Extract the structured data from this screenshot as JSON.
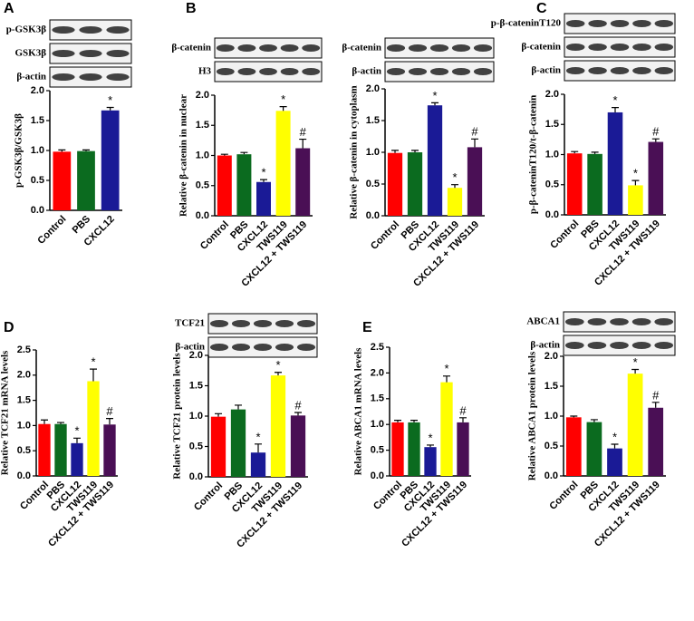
{
  "chart_data": [
    {
      "type": "bar",
      "panel": "A",
      "blots": [
        "p-GSK3β",
        "GSK3β",
        "β-actin"
      ],
      "y_label": "p-GSK3β/GSK3β",
      "categories": [
        "Control",
        "PBS",
        "CXCL12"
      ],
      "values": [
        0.98,
        0.99,
        1.67
      ],
      "errors": [
        0.03,
        0.02,
        0.05
      ],
      "annotations": [
        null,
        null,
        "*"
      ],
      "colors": [
        "#ff0000",
        "#0b6b1f",
        "#1a1a96"
      ],
      "ylim": [
        0,
        2
      ],
      "yticks": [
        {
          "value": 0,
          "label": "0.0"
        },
        0.5,
        {
          "value": 1,
          "label": "1.0"
        },
        1.5,
        {
          "value": 2,
          "label": "2.0"
        }
      ]
    },
    {
      "type": "bar",
      "panel": "B",
      "blots": [
        "β-catenin",
        "H3"
      ],
      "y_label": "Relative β-catenin in nuclear",
      "categories": [
        "Control",
        "PBS",
        "CXCL12",
        "TWS119",
        "CXCL12 + TWS119"
      ],
      "values": [
        1.0,
        1.02,
        0.56,
        1.74,
        1.12
      ],
      "errors": [
        0.02,
        0.03,
        0.04,
        0.07,
        0.15
      ],
      "annotations": [
        null,
        null,
        "*",
        "*",
        "#"
      ],
      "colors": [
        "#ff0000",
        "#0b6b1f",
        "#1a1a96",
        "#ffff00",
        "#4a0f55"
      ],
      "ylim": [
        0,
        2
      ],
      "yticks": [
        {
          "value": 0,
          "label": "0.0"
        },
        0.5,
        {
          "value": 1,
          "label": "1.0"
        },
        1.5,
        {
          "value": 2,
          "label": "2.0"
        }
      ]
    },
    {
      "type": "bar",
      "blots": [
        "β-catenin",
        "β-actin"
      ],
      "y_label": "Relative β-catenin in cytoplasm",
      "categories": [
        "Control",
        "PBS",
        "CXCL12",
        "TWS119",
        "CXCL12 + TWS119"
      ],
      "values": [
        0.99,
        1.0,
        1.74,
        0.44,
        1.08
      ],
      "errors": [
        0.04,
        0.03,
        0.04,
        0.05,
        0.13
      ],
      "annotations": [
        null,
        null,
        "*",
        "*",
        "#"
      ],
      "colors": [
        "#ff0000",
        "#0b6b1f",
        "#1a1a96",
        "#ffff00",
        "#4a0f55"
      ],
      "ylim": [
        0,
        2
      ],
      "yticks": [
        {
          "value": 0,
          "label": "0.0"
        },
        0.5,
        {
          "value": 1,
          "label": "1.0"
        },
        1.5,
        {
          "value": 2,
          "label": "2.0"
        }
      ]
    },
    {
      "type": "bar",
      "panel": "C",
      "blots": [
        "p-β-cateninT120",
        "β-catenin",
        "β-actin"
      ],
      "y_label": "p-β-cateninT120/t-β-catenin",
      "categories": [
        "Control",
        "PBS",
        "CXCL12",
        "TWS119",
        "CXCL12 + TWS119"
      ],
      "values": [
        1.02,
        1.01,
        1.7,
        0.49,
        1.21
      ],
      "errors": [
        0.03,
        0.03,
        0.08,
        0.08,
        0.05
      ],
      "annotations": [
        null,
        null,
        "*",
        "*",
        "#"
      ],
      "colors": [
        "#ff0000",
        "#0b6b1f",
        "#1a1a96",
        "#ffff00",
        "#4a0f55"
      ],
      "ylim": [
        0,
        2
      ],
      "yticks": [
        {
          "value": 0,
          "label": "0.0"
        },
        0.5,
        {
          "value": 1,
          "label": "1.0"
        },
        1.5,
        {
          "value": 2,
          "label": "2.0"
        }
      ]
    },
    {
      "type": "bar",
      "panel": "D",
      "y_label": "Relative TCF21 mRNA levels",
      "categories": [
        "Control",
        "PBS",
        "CXCL12",
        "TWS119",
        "CXCL12 + TWS119"
      ],
      "values": [
        1.03,
        1.03,
        0.65,
        1.88,
        1.02
      ],
      "errors": [
        0.08,
        0.03,
        0.1,
        0.24,
        0.12
      ],
      "annotations": [
        null,
        null,
        "*",
        "*",
        "#"
      ],
      "colors": [
        "#ff0000",
        "#0b6b1f",
        "#1a1a96",
        "#ffff00",
        "#4a0f55"
      ],
      "ylim": [
        0,
        2.5
      ],
      "yticks": [
        {
          "value": 0,
          "label": "0.0"
        },
        0.5,
        {
          "value": 1,
          "label": "1.0"
        },
        1.5,
        {
          "value": 2,
          "label": "2.0"
        },
        2.5
      ]
    },
    {
      "type": "bar",
      "blots": [
        "TCF21",
        "β-actin"
      ],
      "y_label": "Relative TCF21 protein levels",
      "categories": [
        "Control",
        "PBS",
        "CXCL12",
        "TWS119",
        "CXCL12 + TWS119"
      ],
      "values": [
        0.99,
        1.11,
        0.4,
        1.67,
        1.01
      ],
      "errors": [
        0.05,
        0.07,
        0.14,
        0.05,
        0.05
      ],
      "annotations": [
        null,
        null,
        "*",
        "*",
        "#"
      ],
      "colors": [
        "#ff0000",
        "#0b6b1f",
        "#1a1a96",
        "#ffff00",
        "#4a0f55"
      ],
      "ylim": [
        0,
        2
      ],
      "yticks": [
        {
          "value": 0,
          "label": "0.0"
        },
        0.5,
        {
          "value": 1,
          "label": "1.0"
        },
        1.5,
        {
          "value": 2,
          "label": "2.0"
        }
      ]
    },
    {
      "type": "bar",
      "panel": "E",
      "y_label": "Relative ABCA1 mRNA levels",
      "categories": [
        "Control",
        "PBS",
        "CXCL12",
        "TWS119",
        "CXCL12 + TWS119"
      ],
      "values": [
        1.04,
        1.04,
        0.56,
        1.82,
        1.04
      ],
      "errors": [
        0.04,
        0.04,
        0.04,
        0.12,
        0.09
      ],
      "annotations": [
        null,
        null,
        "*",
        "*",
        "#"
      ],
      "colors": [
        "#ff0000",
        "#0b6b1f",
        "#1a1a96",
        "#ffff00",
        "#4a0f55"
      ],
      "ylim": [
        0,
        2.5
      ],
      "yticks": [
        {
          "value": 0,
          "label": "0.0"
        },
        0.5,
        {
          "value": 1,
          "label": "1.0"
        },
        1.5,
        {
          "value": 2,
          "label": "2.0"
        },
        2.5
      ]
    },
    {
      "type": "bar",
      "blots": [
        "ABCA1",
        "β-actin"
      ],
      "y_label": "Relative ABCA1 protein levels",
      "categories": [
        "Control",
        "PBS",
        "CXCL12",
        "TWS119",
        "CXCL12 + TWS119"
      ],
      "values": [
        0.98,
        0.9,
        0.46,
        1.71,
        1.14
      ],
      "errors": [
        0.02,
        0.04,
        0.07,
        0.07,
        0.09
      ],
      "annotations": [
        null,
        null,
        "*",
        "*",
        "#"
      ],
      "colors": [
        "#ff0000",
        "#0b6b1f",
        "#1a1a96",
        "#ffff00",
        "#4a0f55"
      ],
      "ylim": [
        0,
        2
      ],
      "yticks": [
        {
          "value": 0,
          "label": "0.0"
        },
        0.5,
        {
          "value": 1,
          "label": "1.0"
        },
        1.5,
        {
          "value": 2,
          "label": "2.0"
        }
      ]
    }
  ]
}
